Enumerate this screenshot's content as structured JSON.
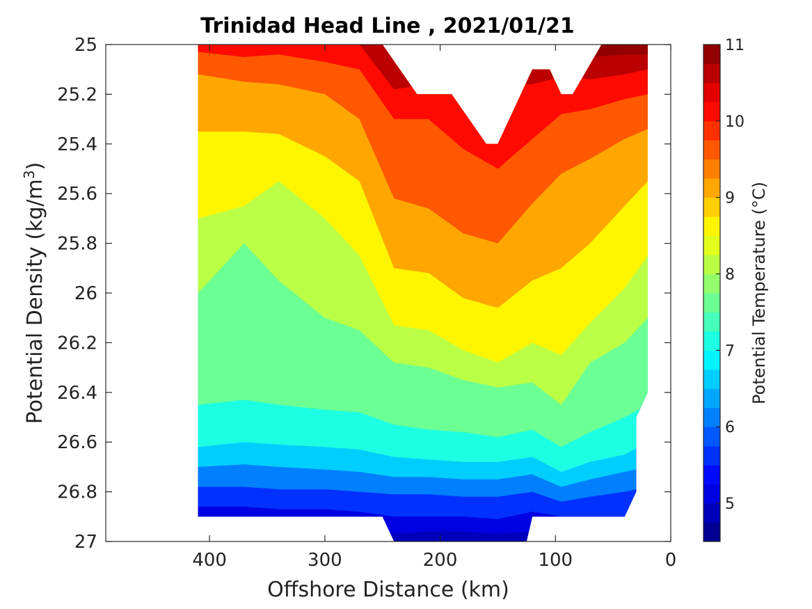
{
  "chart_data": {
    "type": "contour",
    "title": "Trinidad Head Line , 2021/01/21",
    "xlabel": "Offshore Distance (km)",
    "ylabel_main": "Potential Density (kg/m",
    "ylabel_sup": "3",
    "ylabel_close": ")",
    "xlim": [
      490,
      0
    ],
    "ylim": [
      27,
      25
    ],
    "x_reversed": true,
    "y_reversed": true,
    "xticks": [
      400,
      300,
      200,
      100,
      0
    ],
    "yticks": [
      25,
      25.2,
      25.4,
      25.6,
      25.8,
      26,
      26.2,
      26.4,
      26.6,
      26.8,
      27
    ],
    "ytick_labels": [
      "25",
      "25.2",
      "25.4",
      "25.6",
      "25.8",
      "26",
      "26.2",
      "26.4",
      "26.6",
      "26.8",
      "27"
    ],
    "colorbar": {
      "label": "Potential Temperature (°C)",
      "range": [
        4.5,
        11
      ],
      "ticks": [
        5,
        6,
        7,
        8,
        9,
        10,
        11
      ],
      "colormap": "jet",
      "levels": [
        4.5,
        4.75,
        5,
        5.25,
        5.5,
        5.75,
        6,
        6.25,
        6.5,
        6.75,
        7,
        7.25,
        7.5,
        7.75,
        8,
        8.25,
        8.5,
        8.75,
        9,
        9.25,
        9.5,
        9.75,
        10,
        10.25,
        10.5,
        10.75,
        11
      ]
    },
    "x_extent": [
      410,
      20
    ],
    "top_boundary": [
      [
        410,
        25
      ],
      [
        250,
        25
      ],
      [
        220,
        25.2
      ],
      [
        190,
        25.2
      ],
      [
        160,
        25.4
      ],
      [
        150,
        25.4
      ],
      [
        120,
        25.1
      ],
      [
        105,
        25.1
      ],
      [
        95,
        25.2
      ],
      [
        85,
        25.2
      ],
      [
        60,
        25
      ],
      [
        20,
        25
      ]
    ],
    "bottom_boundary": [
      [
        20,
        26.4
      ],
      [
        30,
        26.5
      ],
      [
        30,
        26.8
      ],
      [
        40,
        26.9
      ],
      [
        120,
        26.9
      ],
      [
        125,
        27
      ],
      [
        240,
        27
      ],
      [
        250,
        26.9
      ],
      [
        410,
        26.9
      ]
    ],
    "isotherms": {
      "x": [
        410,
        370,
        340,
        300,
        270,
        240,
        210,
        180,
        150,
        120,
        95,
        70,
        40,
        20
      ],
      "depths": [
        {
          "t": 11.0,
          "y": [
            24.5,
            24.5,
            24.5,
            24.5,
            24.5,
            25.06,
            25.05,
            25.05,
            25.05,
            25.05,
            24.8,
            25.05,
            25.04,
            25.04
          ]
        },
        {
          "t": 10.5,
          "y": [
            25.0,
            25.0,
            25.0,
            25.0,
            25.0,
            25.18,
            25.16,
            25.16,
            25.16,
            25.16,
            25.13,
            25.14,
            25.12,
            25.1
          ]
        },
        {
          "t": 10.0,
          "y": [
            25.03,
            25.05,
            25.04,
            25.07,
            25.1,
            25.3,
            25.3,
            25.42,
            25.5,
            25.38,
            25.28,
            25.26,
            25.22,
            25.2
          ]
        },
        {
          "t": 9.5,
          "y": [
            25.12,
            25.15,
            25.16,
            25.2,
            25.3,
            25.62,
            25.66,
            25.76,
            25.8,
            25.64,
            25.52,
            25.46,
            25.38,
            25.34
          ]
        },
        {
          "t": 9.0,
          "y": [
            25.35,
            25.35,
            25.36,
            25.45,
            25.55,
            25.9,
            25.92,
            26.02,
            26.06,
            25.95,
            25.9,
            25.8,
            25.65,
            25.55
          ]
        },
        {
          "t": 8.5,
          "y": [
            25.7,
            25.65,
            25.55,
            25.7,
            25.85,
            26.13,
            26.15,
            26.23,
            26.28,
            26.2,
            26.25,
            26.12,
            25.98,
            25.85
          ]
        },
        {
          "t": 8.0,
          "y": [
            26.0,
            25.8,
            25.95,
            26.1,
            26.15,
            26.28,
            26.3,
            26.35,
            26.38,
            26.36,
            26.45,
            26.28,
            26.2,
            26.1
          ]
        },
        {
          "t": 7.5,
          "y": [
            26.45,
            26.43,
            26.45,
            26.47,
            26.48,
            26.53,
            26.55,
            26.56,
            26.58,
            26.55,
            26.62,
            26.56,
            26.5,
            26.45
          ]
        },
        {
          "t": 7.0,
          "y": [
            26.62,
            26.6,
            26.61,
            26.62,
            26.63,
            26.66,
            26.67,
            26.68,
            26.68,
            26.66,
            26.72,
            26.68,
            26.65,
            26.6
          ]
        },
        {
          "t": 6.5,
          "y": [
            26.7,
            26.69,
            26.7,
            26.71,
            26.72,
            26.74,
            26.74,
            26.75,
            26.75,
            26.73,
            26.78,
            26.75,
            26.72,
            26.7
          ]
        },
        {
          "t": 6.0,
          "y": [
            26.78,
            26.78,
            26.79,
            26.79,
            26.8,
            26.81,
            26.81,
            26.82,
            26.82,
            26.8,
            26.84,
            26.82,
            26.8,
            26.78
          ]
        },
        {
          "t": 5.5,
          "y": [
            26.86,
            26.86,
            26.87,
            26.87,
            26.88,
            26.9,
            26.9,
            26.9,
            26.91,
            26.88,
            26.9,
            26.9,
            26.9,
            26.9
          ]
        },
        {
          "t": 5.0,
          "y": [
            26.95,
            26.95,
            26.95,
            26.95,
            26.95,
            26.97,
            26.96,
            26.96,
            26.97,
            26.96,
            26.95,
            26.95,
            26.95,
            26.95
          ]
        }
      ]
    }
  }
}
